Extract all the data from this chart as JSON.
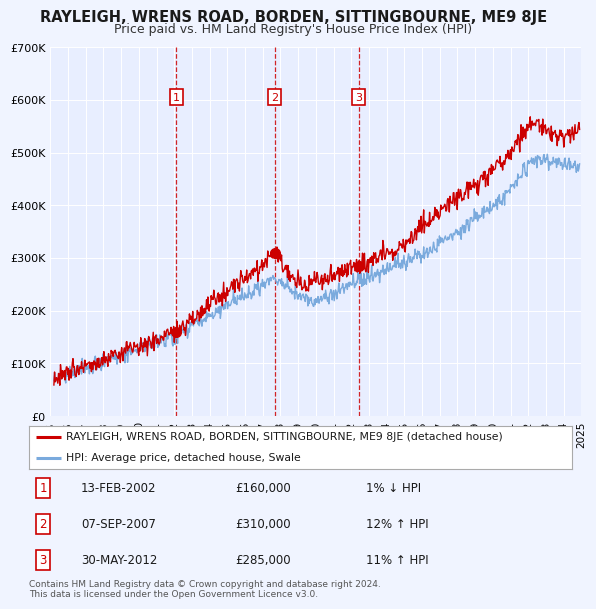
{
  "title": "RAYLEIGH, WRENS ROAD, BORDEN, SITTINGBOURNE, ME9 8JE",
  "subtitle": "Price paid vs. HM Land Registry's House Price Index (HPI)",
  "title_fontsize": 10.5,
  "subtitle_fontsize": 9,
  "background_color": "#f0f4ff",
  "plot_bg_color": "#e8eeff",
  "ylim": [
    0,
    700000
  ],
  "yticks": [
    0,
    100000,
    200000,
    300000,
    400000,
    500000,
    600000,
    700000
  ],
  "ytick_labels": [
    "£0",
    "£100K",
    "£200K",
    "£300K",
    "£400K",
    "£500K",
    "£600K",
    "£700K"
  ],
  "red_line_color": "#cc0000",
  "blue_line_color": "#7aaadd",
  "grid_color": "#ffffff",
  "sale_markers": [
    {
      "label": "1",
      "date_x": 2002.12,
      "price": 160000,
      "vline_color": "#cc0000"
    },
    {
      "label": "2",
      "date_x": 2007.68,
      "price": 310000,
      "vline_color": "#cc0000"
    },
    {
      "label": "3",
      "date_x": 2012.41,
      "price": 285000,
      "vline_color": "#cc0000"
    }
  ],
  "legend_entries": [
    {
      "color": "#cc0000",
      "label": "RAYLEIGH, WRENS ROAD, BORDEN, SITTINGBOURNE, ME9 8JE (detached house)"
    },
    {
      "color": "#7aaadd",
      "label": "HPI: Average price, detached house, Swale"
    }
  ],
  "table_rows": [
    {
      "num": "1",
      "date": "13-FEB-2002",
      "price": "£160,000",
      "hpi": "1% ↓ HPI"
    },
    {
      "num": "2",
      "date": "07-SEP-2007",
      "price": "£310,000",
      "hpi": "12% ↑ HPI"
    },
    {
      "num": "3",
      "date": "30-MAY-2012",
      "price": "£285,000",
      "hpi": "11% ↑ HPI"
    }
  ],
  "footer": "Contains HM Land Registry data © Crown copyright and database right 2024.\nThis data is licensed under the Open Government Licence v3.0.",
  "xmin": 1995,
  "xmax": 2025
}
